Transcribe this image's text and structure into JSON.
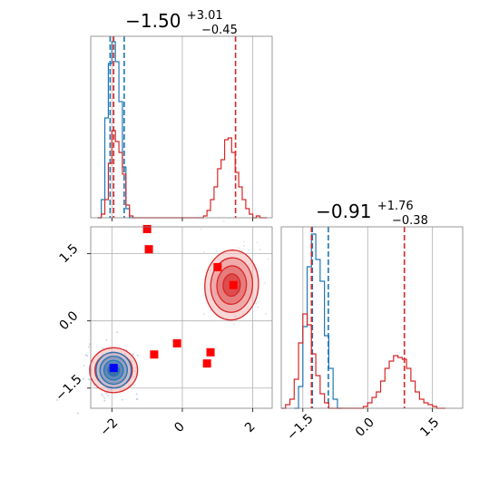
{
  "chart_data": [
    {
      "type": "histogram",
      "panel": "top-left",
      "title": "-1.50",
      "title_sup": "+3.01",
      "title_sub": "-0.45",
      "xlim": [
        -2.6,
        2.55
      ],
      "x_ticks": [
        -2,
        0,
        2
      ],
      "tick_labels_shown": false,
      "grid": true,
      "series": [
        {
          "color": "#1f77b4",
          "bins": [
            [
              -2.35,
              0.0
            ],
            [
              -2.25,
              0.1
            ],
            [
              -2.15,
              0.55
            ],
            [
              -2.05,
              0.85
            ],
            [
              -1.95,
              0.97
            ],
            [
              -1.85,
              0.86
            ],
            [
              -1.75,
              0.64
            ],
            [
              -1.65,
              0.28
            ],
            [
              -1.55,
              0.05
            ],
            [
              -1.45,
              0.0
            ]
          ],
          "quantile_lines": [
            -2.05,
            -1.95,
            -1.65
          ]
        },
        {
          "color": "#d62728",
          "bins": [
            [
              -2.35,
              0.0
            ],
            [
              -2.25,
              0.02
            ],
            [
              -2.15,
              0.1
            ],
            [
              -2.05,
              0.3
            ],
            [
              -1.95,
              0.48
            ],
            [
              -1.85,
              0.42
            ],
            [
              -1.75,
              0.36
            ],
            [
              -1.65,
              0.24
            ],
            [
              -1.55,
              0.07
            ],
            [
              -1.45,
              0.01
            ],
            [
              -0.75,
              0.0
            ],
            [
              0.65,
              0.01
            ],
            [
              0.75,
              0.04
            ],
            [
              0.85,
              0.1
            ],
            [
              0.95,
              0.17
            ],
            [
              1.05,
              0.27
            ],
            [
              1.15,
              0.32
            ],
            [
              1.25,
              0.43
            ],
            [
              1.35,
              0.44
            ],
            [
              1.45,
              0.36
            ],
            [
              1.55,
              0.25
            ],
            [
              1.65,
              0.17
            ],
            [
              1.75,
              0.1
            ],
            [
              1.85,
              0.05
            ],
            [
              1.95,
              0.02
            ],
            [
              2.15,
              0.01
            ],
            [
              2.35,
              0.0
            ]
          ],
          "quantile_lines": [
            -1.95,
            1.51
          ]
        }
      ]
    },
    {
      "type": "scatter",
      "panel": "bottom-left",
      "xlim": [
        -2.6,
        2.55
      ],
      "ylim": [
        -1.95,
        2.1
      ],
      "x_ticks": [
        -2,
        0,
        2
      ],
      "x_tick_labels": [
        "−2",
        "0",
        "2"
      ],
      "y_ticks": [
        -1.5,
        0.0,
        1.5
      ],
      "y_tick_labels": [
        "−1.5",
        "0.0",
        "1.5"
      ],
      "grid": true,
      "contour_sets": [
        {
          "color": "#d62728",
          "center": [
            1.4,
            0.8
          ],
          "radii": [
            0.76,
            0.78
          ]
        },
        {
          "color": "#d62728",
          "center": [
            -1.95,
            -1.1
          ],
          "radii": [
            0.68,
            0.5
          ]
        },
        {
          "color": "#1f77b4",
          "center": [
            -1.95,
            -1.1
          ],
          "radii": [
            0.5,
            0.4
          ]
        }
      ],
      "red_markers": [
        {
          "x": -1.0,
          "y": 2.05
        },
        {
          "x": -0.95,
          "y": 1.6
        },
        {
          "x": 1.0,
          "y": 1.2
        },
        {
          "x": 1.45,
          "y": 0.8
        },
        {
          "x": -0.8,
          "y": -0.75
        },
        {
          "x": -0.15,
          "y": -0.5
        },
        {
          "x": 0.8,
          "y": -0.7
        },
        {
          "x": 0.7,
          "y": -0.95
        }
      ],
      "blue_markers": [
        {
          "x": -1.95,
          "y": -1.05
        }
      ]
    },
    {
      "type": "histogram",
      "panel": "bottom-right",
      "title": "-0.91",
      "title_sup": "+1.76",
      "title_sub": "-0.38",
      "xlim": [
        -2.0,
        2.2
      ],
      "x_ticks": [
        -1.5,
        0.0,
        1.5
      ],
      "x_tick_labels": [
        "−1.5",
        "0.0",
        "1.5"
      ],
      "grid": true,
      "series": [
        {
          "color": "#1f77b4",
          "bins": [
            [
              -1.65,
              0.0
            ],
            [
              -1.55,
              0.12
            ],
            [
              -1.45,
              0.45
            ],
            [
              -1.35,
              0.78
            ],
            [
              -1.25,
              0.96
            ],
            [
              -1.15,
              0.82
            ],
            [
              -1.05,
              0.7
            ],
            [
              -0.95,
              0.4
            ],
            [
              -0.85,
              0.22
            ],
            [
              -0.75,
              0.05
            ],
            [
              -0.65,
              0.0
            ]
          ],
          "quantile_lines": [
            -1.28,
            -0.91
          ]
        },
        {
          "color": "#d62728",
          "bins": [
            [
              -1.95,
              0.0
            ],
            [
              -1.85,
              0.02
            ],
            [
              -1.75,
              0.05
            ],
            [
              -1.65,
              0.16
            ],
            [
              -1.55,
              0.36
            ],
            [
              -1.45,
              0.52
            ],
            [
              -1.35,
              0.46
            ],
            [
              -1.25,
              0.3
            ],
            [
              -1.15,
              0.18
            ],
            [
              -1.05,
              0.08
            ],
            [
              -0.95,
              0.03
            ],
            [
              -0.85,
              0.0
            ],
            [
              -0.15,
              0.0
            ],
            [
              -0.05,
              0.01
            ],
            [
              0.05,
              0.03
            ],
            [
              0.15,
              0.06
            ],
            [
              0.25,
              0.09
            ],
            [
              0.35,
              0.15
            ],
            [
              0.45,
              0.22
            ],
            [
              0.55,
              0.26
            ],
            [
              0.65,
              0.29
            ],
            [
              0.75,
              0.28
            ],
            [
              0.85,
              0.27
            ],
            [
              0.95,
              0.22
            ],
            [
              1.05,
              0.15
            ],
            [
              1.15,
              0.09
            ],
            [
              1.25,
              0.05
            ],
            [
              1.35,
              0.03
            ],
            [
              1.45,
              0.02
            ],
            [
              1.55,
              0.01
            ],
            [
              1.75,
              0.0
            ]
          ],
          "quantile_lines": [
            -1.3,
            0.85
          ]
        }
      ]
    }
  ]
}
